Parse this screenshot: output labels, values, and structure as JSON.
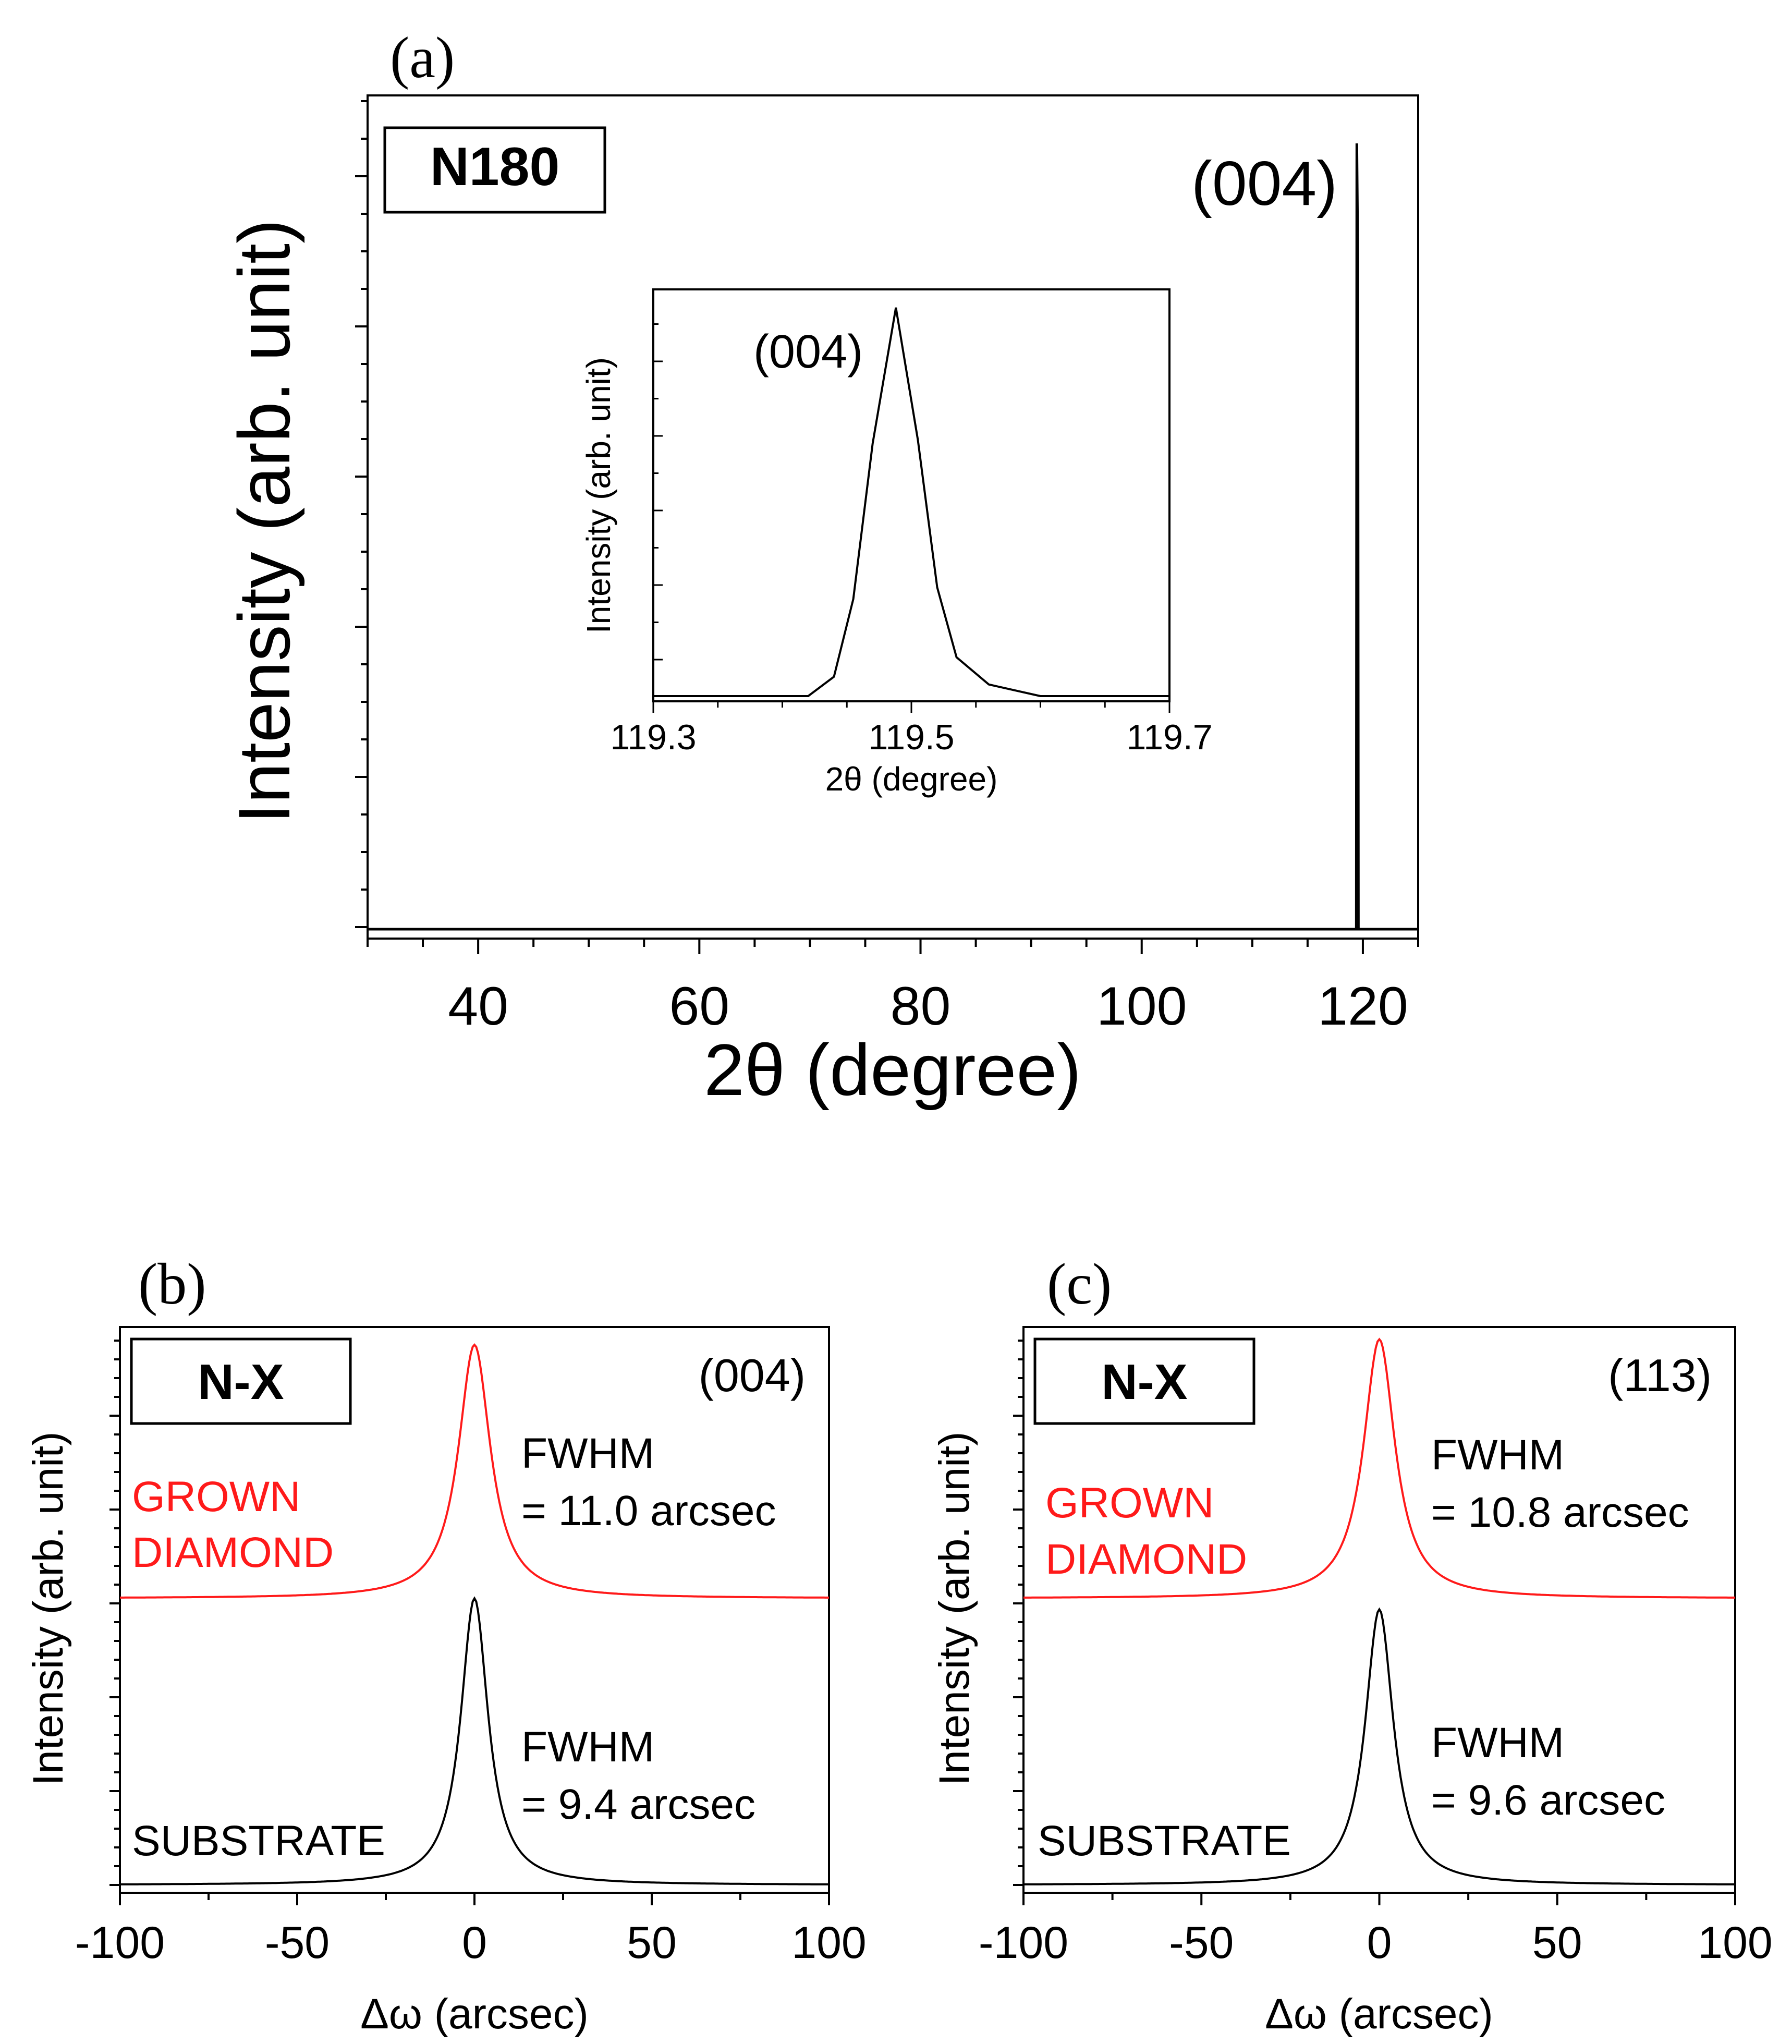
{
  "colors": {
    "black": "#000000",
    "red": "#ff1a1a"
  },
  "chart_data": [
    {
      "panel_label": "(a)",
      "type": "line",
      "sample_label": "N180",
      "peak_label": "(004)",
      "xlabel": "2θ (degree)",
      "ylabel": "Intensity (arb. unit)",
      "xlim": [
        30,
        125
      ],
      "ylim": [
        0,
        1
      ],
      "xticks": [
        40,
        60,
        80,
        100,
        120
      ],
      "xtick_labels": [
        "40",
        "60",
        "80",
        "100",
        "120"
      ],
      "series": [
        {
          "name": "N180",
          "color": "#000000",
          "x": [
            30,
            119.4,
            119.45,
            119.49,
            119.53,
            119.6,
            125
          ],
          "y": [
            0.0,
            0.0,
            0.6,
            1.0,
            0.6,
            0.0,
            0.0
          ]
        }
      ],
      "inset": {
        "type": "line",
        "peak_label": "(004)",
        "xlabel": "2θ (degree)",
        "ylabel": "Intensity (arb. unit)",
        "xlim": [
          119.3,
          119.7
        ],
        "ylim": [
          0,
          1
        ],
        "xticks": [
          119.3,
          119.5,
          119.7
        ],
        "xtick_labels": [
          "119.3",
          "119.5",
          "119.7"
        ],
        "series": [
          {
            "name": "(004)",
            "color": "#000000",
            "x": [
              119.3,
              119.42,
              119.44,
              119.455,
              119.47,
              119.488,
              119.505,
              119.52,
              119.535,
              119.56,
              119.6,
              119.7
            ],
            "y": [
              0.0,
              0.0,
              0.05,
              0.25,
              0.65,
              1.0,
              0.66,
              0.28,
              0.1,
              0.03,
              0.0,
              0.0
            ]
          }
        ]
      }
    },
    {
      "panel_label": "(b)",
      "type": "line",
      "sample_label": "N-X",
      "reflection": "(004)",
      "xlabel": "Δω (arcsec)",
      "ylabel": "Intensity (arb. unit)",
      "xlim": [
        -100,
        100
      ],
      "xticks": [
        -100,
        -50,
        0,
        50,
        100
      ],
      "xtick_labels": [
        "-100",
        "-50",
        "0",
        "50",
        "100"
      ],
      "series": [
        {
          "name": "GROWN DIAMOND",
          "label_line1": "GROWN",
          "label_line2": "DIAMOND",
          "color": "#ff1a1a",
          "fwhm_arcsec": 11.0,
          "fwhm_line1": "FWHM",
          "fwhm_line2": "= 11.0 arcsec",
          "baseline": 0.52,
          "peak": 0.98
        },
        {
          "name": "SUBSTRATE",
          "label_line1": "SUBSTRATE",
          "color": "#000000",
          "fwhm_arcsec": 9.4,
          "fwhm_line1": "FWHM",
          "fwhm_line2": "= 9.4 arcsec",
          "baseline": 0.0,
          "peak": 0.52
        }
      ]
    },
    {
      "panel_label": "(c)",
      "type": "line",
      "sample_label": "N-X",
      "reflection": "(113)",
      "xlabel": "Δω (arcsec)",
      "ylabel": "Intensity (arb. unit)",
      "xlim": [
        -100,
        100
      ],
      "xticks": [
        -100,
        -50,
        0,
        50,
        100
      ],
      "xtick_labels": [
        "-100",
        "-50",
        "0",
        "50",
        "100"
      ],
      "series": [
        {
          "name": "GROWN DIAMOND",
          "label_line1": "GROWN",
          "label_line2": "DIAMOND",
          "color": "#ff1a1a",
          "fwhm_arcsec": 10.8,
          "fwhm_line1": "FWHM",
          "fwhm_line2": "= 10.8 arcsec",
          "baseline": 0.52,
          "peak": 0.99
        },
        {
          "name": "SUBSTRATE",
          "label_line1": "SUBSTRATE",
          "color": "#000000",
          "fwhm_arcsec": 9.6,
          "fwhm_line1": "FWHM",
          "fwhm_line2": "= 9.6 arcsec",
          "baseline": 0.0,
          "peak": 0.5
        }
      ]
    }
  ]
}
